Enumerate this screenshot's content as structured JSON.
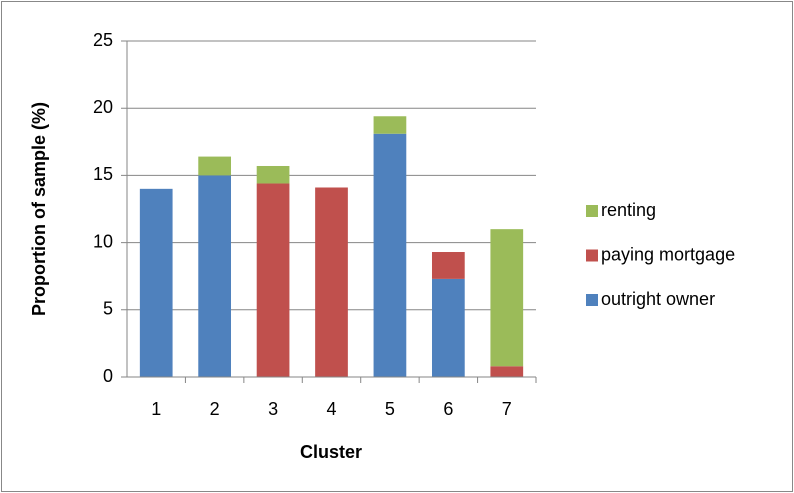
{
  "chart_data": {
    "type": "stacked_bar",
    "x_label": "Cluster",
    "y_label": "Proportion of sample (%)",
    "categories": [
      "1",
      "2",
      "3",
      "4",
      "5",
      "6",
      "7"
    ],
    "series": [
      {
        "name": "outright owner",
        "color": "#4f81bd",
        "values": [
          14.0,
          15.0,
          null,
          null,
          18.1,
          7.3,
          null
        ]
      },
      {
        "name": "paying mortgage",
        "color": "#c0504d",
        "values": [
          null,
          null,
          14.4,
          14.1,
          null,
          2.0,
          0.8
        ]
      },
      {
        "name": "renting",
        "color": "#9bbb59",
        "values": [
          null,
          1.4,
          1.3,
          null,
          1.3,
          null,
          10.2
        ]
      }
    ],
    "ylim": [
      0,
      25
    ],
    "yticks": [
      0,
      5,
      10,
      15,
      20,
      25
    ],
    "grid": true,
    "legend": "right"
  }
}
